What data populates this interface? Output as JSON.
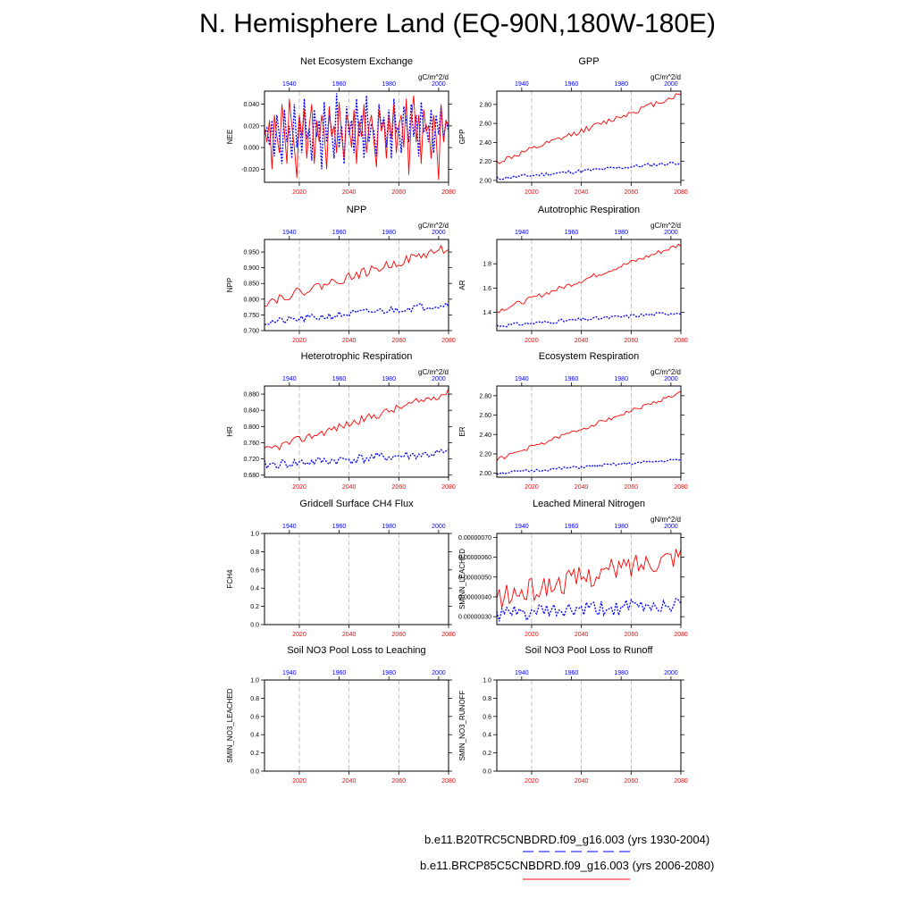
{
  "title": "N. Hemisphere Land (EQ-90N,180W-180E)",
  "legend": {
    "control_label": "b.e11.B20TRC5CNBDRD.f09_g16.003 (yrs 1930-2004)",
    "control_color": "#0000ff",
    "scenario_label": "b.e11.BRCP85C5CNBDRD.f09_g16.003 (yrs 2006-2080)",
    "scenario_color": "#ff0000"
  },
  "chart_data": [
    {
      "id": "nee",
      "type": "line",
      "title": "Net Ecosystem Exchange",
      "ylabel": "NEE",
      "units": "gC/m^2/d",
      "yticks": [
        "0.040",
        "0.020",
        "0.000",
        "-0.020"
      ],
      "ytick_values": [
        0.04,
        0.02,
        0.0,
        -0.02
      ],
      "ylim": [
        -0.032,
        0.052
      ],
      "top_xticks": [
        "1940",
        "1960",
        "1980",
        "2000"
      ],
      "bottom_xticks": [
        "2020",
        "2040",
        "2060",
        "2080"
      ],
      "series": [
        {
          "name": "control",
          "color": "#0000ff",
          "x_start": 1930,
          "x_end": 2004,
          "values": [
            0.012,
            0.018,
            0.002,
            0.025,
            -0.008,
            0.03,
            0.01,
            -0.015,
            0.035,
            0.005,
            0.02,
            -0.01,
            0.04,
            0.0,
            0.028,
            -0.005,
            0.045,
            0.008,
            0.018,
            -0.012,
            0.035,
            0.01,
            0.025,
            -0.02,
            0.042,
            0.005,
            0.03,
            0.015,
            -0.01,
            0.05,
            0.0,
            0.02,
            -0.015,
            0.038,
            0.012,
            0.025,
            -0.005,
            0.045,
            0.01,
            0.03,
            -0.01,
            0.048,
            0.005,
            0.022,
            0.015,
            -0.008,
            0.04,
            0.018,
            0.028,
            0.0,
            0.035,
            -0.01,
            0.045,
            0.015,
            0.02,
            -0.005,
            0.038,
            0.025,
            0.005,
            0.04,
            0.01,
            0.03,
            -0.008,
            0.042,
            0.015,
            0.02,
            0.005,
            0.035,
            -0.005,
            0.03,
            0.012,
            0.038,
            0.008,
            0.025,
            0.015
          ]
        },
        {
          "name": "scenario",
          "color": "#ff0000",
          "x_start": 2006,
          "x_end": 2080,
          "values": [
            0.018,
            0.005,
            0.025,
            -0.02,
            0.03,
            0.01,
            -0.005,
            0.04,
            0.015,
            -0.015,
            0.045,
            0.02,
            0.0,
            -0.028,
            0.03,
            0.01,
            0.035,
            -0.01,
            0.02,
            0.04,
            -0.015,
            0.025,
            0.005,
            0.03,
            0.015,
            -0.02,
            0.038,
            0.01,
            0.02,
            -0.005,
            0.042,
            0.012,
            -0.01,
            0.03,
            0.02,
            0.0,
            0.035,
            -0.015,
            0.025,
            0.01,
            0.04,
            -0.005,
            0.02,
            0.03,
            0.005,
            -0.018,
            0.035,
            0.015,
            0.025,
            -0.01,
            0.03,
            0.008,
            0.04,
            -0.005,
            0.02,
            0.03,
            0.0,
            0.045,
            -0.025,
            0.025,
            0.048,
            0.005,
            0.03,
            -0.015,
            0.035,
            0.015,
            0.02,
            -0.01,
            0.03,
            0.01,
            -0.03,
            0.04,
            0.005,
            0.025,
            0.02
          ]
        }
      ]
    },
    {
      "id": "gpp",
      "type": "line",
      "title": "GPP",
      "ylabel": "GPP",
      "units": "gC/m^2/d",
      "yticks": [
        "2.80",
        "2.60",
        "2.40",
        "2.20",
        "2.00"
      ],
      "ytick_values": [
        2.8,
        2.6,
        2.4,
        2.2,
        2.0
      ],
      "ylim": [
        1.98,
        2.94
      ],
      "top_xticks": [
        "1940",
        "1960",
        "1980",
        "2000"
      ],
      "bottom_xticks": [
        "2020",
        "2040",
        "2060",
        "2080"
      ],
      "series": [
        {
          "name": "control",
          "color": "#0000ff",
          "x_start": 1930,
          "x_end": 2004,
          "start": 2.02,
          "end": 2.19,
          "noise": 0.02,
          "seed": 11
        },
        {
          "name": "scenario",
          "color": "#ff0000",
          "x_start": 2006,
          "x_end": 2080,
          "start": 2.19,
          "end": 2.91,
          "noise": 0.03,
          "seed": 12
        }
      ]
    },
    {
      "id": "npp",
      "type": "line",
      "title": "NPP",
      "ylabel": "NPP",
      "units": "gC/m^2/d",
      "yticks": [
        "0.950",
        "0.900",
        "0.850",
        "0.800",
        "0.750",
        "0.700"
      ],
      "ytick_values": [
        0.95,
        0.9,
        0.85,
        0.8,
        0.75,
        0.7
      ],
      "ylim": [
        0.7,
        0.99
      ],
      "top_xticks": [
        "1940",
        "1960",
        "1980",
        "2000"
      ],
      "bottom_xticks": [
        "2020",
        "2040",
        "2060",
        "2080"
      ],
      "series": [
        {
          "name": "control",
          "color": "#0000ff",
          "x_start": 1930,
          "x_end": 2004,
          "start": 0.725,
          "end": 0.785,
          "noise": 0.012,
          "seed": 21
        },
        {
          "name": "scenario",
          "color": "#ff0000",
          "x_start": 2006,
          "x_end": 2080,
          "start": 0.79,
          "end": 0.965,
          "noise": 0.015,
          "seed": 22
        }
      ]
    },
    {
      "id": "ar",
      "type": "line",
      "title": "Autotrophic Respiration",
      "ylabel": "AR",
      "units": "gC/m^2/d",
      "yticks": [
        "1.8",
        "1.6",
        "1.4"
      ],
      "ytick_values": [
        1.8,
        1.6,
        1.4
      ],
      "ylim": [
        1.25,
        2.0
      ],
      "top_xticks": [
        "1940",
        "1960",
        "1980",
        "2000"
      ],
      "bottom_xticks": [
        "2020",
        "2040",
        "2060",
        "2080"
      ],
      "series": [
        {
          "name": "control",
          "color": "#0000ff",
          "x_start": 1930,
          "x_end": 2004,
          "start": 1.29,
          "end": 1.4,
          "noise": 0.015,
          "seed": 31
        },
        {
          "name": "scenario",
          "color": "#ff0000",
          "x_start": 2006,
          "x_end": 2080,
          "start": 1.41,
          "end": 1.96,
          "noise": 0.02,
          "seed": 32
        }
      ]
    },
    {
      "id": "hr",
      "type": "line",
      "title": "Heterotrophic Respiration",
      "ylabel": "HR",
      "units": "gC/m^2/d",
      "yticks": [
        "0.880",
        "0.840",
        "0.800",
        "0.760",
        "0.720",
        "0.680"
      ],
      "ytick_values": [
        0.88,
        0.84,
        0.8,
        0.76,
        0.72,
        0.68
      ],
      "ylim": [
        0.675,
        0.9
      ],
      "top_xticks": [
        "1940",
        "1960",
        "1980",
        "2000"
      ],
      "bottom_xticks": [
        "2020",
        "2040",
        "2060",
        "2080"
      ],
      "series": [
        {
          "name": "control",
          "color": "#0000ff",
          "x_start": 1930,
          "x_end": 2004,
          "start": 0.705,
          "end": 0.735,
          "noise": 0.012,
          "seed": 41
        },
        {
          "name": "scenario",
          "color": "#ff0000",
          "x_start": 2006,
          "x_end": 2080,
          "start": 0.74,
          "end": 0.885,
          "noise": 0.01,
          "seed": 42
        }
      ]
    },
    {
      "id": "er",
      "type": "line",
      "title": "Ecosystem Respiration",
      "ylabel": "ER",
      "units": "gC/m^2/d",
      "yticks": [
        "2.80",
        "2.60",
        "2.40",
        "2.20",
        "2.00"
      ],
      "ytick_values": [
        2.8,
        2.6,
        2.4,
        2.2,
        2.0
      ],
      "ylim": [
        1.96,
        2.9
      ],
      "top_xticks": [
        "1940",
        "1960",
        "1980",
        "2000"
      ],
      "bottom_xticks": [
        "2020",
        "2040",
        "2060",
        "2080"
      ],
      "series": [
        {
          "name": "control",
          "color": "#0000ff",
          "x_start": 1930,
          "x_end": 2004,
          "start": 2.0,
          "end": 2.14,
          "noise": 0.015,
          "seed": 51
        },
        {
          "name": "scenario",
          "color": "#ff0000",
          "x_start": 2006,
          "x_end": 2080,
          "start": 2.14,
          "end": 2.83,
          "noise": 0.02,
          "seed": 52
        }
      ]
    },
    {
      "id": "fch4",
      "type": "line",
      "title": "Gridcell Surface CH4 Flux",
      "ylabel": "FCH4",
      "units": "",
      "yticks": [
        "1.0",
        "0.8",
        "0.6",
        "0.4",
        "0.2",
        "0.0"
      ],
      "ytick_values": [
        1.0,
        0.8,
        0.6,
        0.4,
        0.2,
        0.0
      ],
      "ylim": [
        0.0,
        1.0
      ],
      "top_xticks": [
        "1940",
        "1960",
        "1980",
        "2000"
      ],
      "bottom_xticks": [
        "2020",
        "2040",
        "2060",
        "2080"
      ],
      "series": []
    },
    {
      "id": "smin_leached",
      "type": "line",
      "title": "Leached Mineral Nitrogen",
      "ylabel": "SMINN_LEACHED",
      "units": "gN/m^2/d",
      "yticks": [
        "0.00000070",
        "0.00000060",
        "0.00000050",
        "0.00000040",
        "0.00000030"
      ],
      "ytick_values": [
        7e-07,
        6e-07,
        5e-07,
        4e-07,
        3e-07
      ],
      "ylim": [
        2.6e-07,
        7.2e-07
      ],
      "top_xticks": [
        "1940",
        "1960",
        "1980",
        "2000"
      ],
      "bottom_xticks": [
        "2020",
        "2040",
        "2060",
        "2080"
      ],
      "series": [
        {
          "name": "control",
          "color": "#0000ff",
          "x_start": 1930,
          "x_end": 2004,
          "start": 3.1e-07,
          "end": 3.6e-07,
          "noise": 4e-08,
          "seed": 61
        },
        {
          "name": "scenario",
          "color": "#ff0000",
          "x_start": 2006,
          "x_end": 2080,
          "start": 3.9e-07,
          "end": 6.2e-07,
          "noise": 6e-08,
          "seed": 62
        }
      ]
    },
    {
      "id": "smin_no3_leached",
      "type": "line",
      "title": "Soil NO3 Pool Loss to Leaching",
      "ylabel": "SMIN_NO3_LEACHED",
      "units": "",
      "yticks": [
        "1.0",
        "0.8",
        "0.6",
        "0.4",
        "0.2",
        "0.0"
      ],
      "ytick_values": [
        1.0,
        0.8,
        0.6,
        0.4,
        0.2,
        0.0
      ],
      "ylim": [
        0.0,
        1.0
      ],
      "top_xticks": [
        "1940",
        "1960",
        "1980",
        "2000"
      ],
      "bottom_xticks": [
        "2020",
        "2040",
        "2060",
        "2080"
      ],
      "series": []
    },
    {
      "id": "smin_no3_runoff",
      "type": "line",
      "title": "Soil NO3 Pool Loss to Runoff",
      "ylabel": "SMIN_NO3_RUNOFF",
      "units": "",
      "yticks": [
        "1.0",
        "0.8",
        "0.6",
        "0.4",
        "0.2",
        "0.0"
      ],
      "ytick_values": [
        1.0,
        0.8,
        0.6,
        0.4,
        0.2,
        0.0
      ],
      "ylim": [
        0.0,
        1.0
      ],
      "top_xticks": [
        "1940",
        "1960",
        "1980",
        "2000"
      ],
      "bottom_xticks": [
        "2020",
        "2040",
        "2060",
        "2080"
      ],
      "series": []
    }
  ]
}
